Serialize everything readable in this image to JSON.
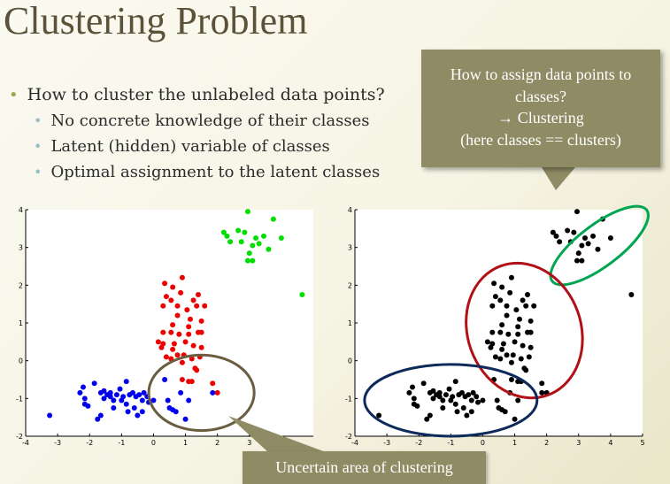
{
  "slide": {
    "title": "Clustering Problem",
    "bullets": {
      "main": "How to cluster the unlabeled data points?",
      "sub": [
        "No concrete knowledge of their classes",
        "Latent (hidden) variable of classes",
        "Optimal assignment to the latent classes"
      ]
    },
    "callout_lines": [
      "How to assign data points to",
      "classes?",
      "→ Clustering",
      "(here classes == clusters)"
    ],
    "bottom_callout": "Uncertain area of clustering"
  },
  "colors": {
    "green": "#00dd00",
    "red": "#ee0000",
    "blue": "#0000ee",
    "black": "#000000",
    "ellipse_green": "#00a651",
    "ellipse_red": "#b01016",
    "ellipse_navy": "#0c2a5a",
    "ellipse_brown": "#6a5d40"
  },
  "chart_data": [
    {
      "type": "scatter",
      "xlim": [
        -4,
        5
      ],
      "ylim": [
        -2,
        4
      ],
      "xticks": [
        "-4",
        "-3",
        "-2",
        "-1",
        "0",
        "1",
        "2",
        "3"
      ],
      "yticks": [
        "-2",
        "-1",
        "0",
        "1",
        "2",
        "3",
        "4"
      ],
      "series": [
        {
          "color": "green",
          "points": [
            [
              2.2,
              3.4
            ],
            [
              2.3,
              3.3
            ],
            [
              2.4,
              3.15
            ],
            [
              2.65,
              3.45
            ],
            [
              2.95,
              3.95
            ],
            [
              3.1,
              3.05
            ],
            [
              2.75,
              3.15
            ],
            [
              2.85,
              3.4
            ],
            [
              3.0,
              2.85
            ],
            [
              3.2,
              3.25
            ],
            [
              3.3,
              3.1
            ],
            [
              3.45,
              3.3
            ],
            [
              3.6,
              2.95
            ],
            [
              3.75,
              3.75
            ],
            [
              4.0,
              3.25
            ],
            [
              2.95,
              2.65
            ],
            [
              3.1,
              2.65
            ],
            [
              4.65,
              1.75
            ]
          ]
        },
        {
          "color": "red",
          "points": [
            [
              0.35,
              2.05
            ],
            [
              0.6,
              1.95
            ],
            [
              0.9,
              2.2
            ],
            [
              0.4,
              1.7
            ],
            [
              0.55,
              1.6
            ],
            [
              0.3,
              1.45
            ],
            [
              0.85,
              1.8
            ],
            [
              1.25,
              1.6
            ],
            [
              1.4,
              1.75
            ],
            [
              0.75,
              1.45
            ],
            [
              1.05,
              1.35
            ],
            [
              1.35,
              1.45
            ],
            [
              1.6,
              1.45
            ],
            [
              0.75,
              1.2
            ],
            [
              1.15,
              1.1
            ],
            [
              1.5,
              1.05
            ],
            [
              0.6,
              0.95
            ],
            [
              1.1,
              0.9
            ],
            [
              0.3,
              0.75
            ],
            [
              0.55,
              0.75
            ],
            [
              0.8,
              0.7
            ],
            [
              1.1,
              0.7
            ],
            [
              1.4,
              0.75
            ],
            [
              1.5,
              0.75
            ],
            [
              1.0,
              0.5
            ],
            [
              0.65,
              0.45
            ],
            [
              1.25,
              0.4
            ],
            [
              0.3,
              0.45
            ],
            [
              0.4,
              0.1
            ],
            [
              0.55,
              0.05
            ],
            [
              0.75,
              0.15
            ],
            [
              0.95,
              0.15
            ],
            [
              0.25,
              0.35
            ],
            [
              0.15,
              0.5
            ],
            [
              1.45,
              0.1
            ],
            [
              1.5,
              0.35
            ],
            [
              1.2,
              0.05
            ],
            [
              1.1,
              -0.55
            ],
            [
              1.2,
              -0.55
            ],
            [
              1.3,
              -0.2
            ],
            [
              0.9,
              -0.5
            ],
            [
              1.85,
              -0.6
            ],
            [
              2.0,
              -0.85
            ],
            [
              1.35,
              -0.25
            ],
            [
              0.9,
              -0.05
            ],
            [
              0.6,
              0.3
            ]
          ]
        },
        {
          "color": "blue",
          "points": [
            [
              -3.25,
              -1.45
            ],
            [
              -2.3,
              -0.85
            ],
            [
              -2.2,
              -0.7
            ],
            [
              -2.15,
              -1.0
            ],
            [
              -2.15,
              -1.15
            ],
            [
              -2.05,
              -1.2
            ],
            [
              -1.85,
              -0.6
            ],
            [
              -1.65,
              -0.85
            ],
            [
              -1.55,
              -0.8
            ],
            [
              -1.45,
              -0.9
            ],
            [
              -1.35,
              -0.85
            ],
            [
              -1.25,
              -1.05
            ],
            [
              -1.15,
              -0.9
            ],
            [
              -1.05,
              -0.75
            ],
            [
              -0.95,
              -0.95
            ],
            [
              -0.85,
              -0.55
            ],
            [
              -0.85,
              -1.15
            ],
            [
              -0.75,
              -0.9
            ],
            [
              -0.65,
              -0.85
            ],
            [
              -0.55,
              -0.95
            ],
            [
              -0.45,
              -0.9
            ],
            [
              -0.3,
              -0.85
            ],
            [
              -0.2,
              -0.95
            ],
            [
              -0.35,
              -1.05
            ],
            [
              -1.65,
              -1.45
            ],
            [
              -1.75,
              -1.55
            ],
            [
              -1.25,
              -1.25
            ],
            [
              -0.8,
              -1.35
            ],
            [
              -0.6,
              -1.25
            ],
            [
              -0.5,
              -1.45
            ],
            [
              -0.35,
              -1.35
            ],
            [
              -0.15,
              -1.1
            ],
            [
              0.0,
              -1.05
            ],
            [
              0.35,
              -0.5
            ],
            [
              0.5,
              -1.25
            ],
            [
              0.6,
              -1.3
            ],
            [
              0.7,
              -1.35
            ],
            [
              0.85,
              -0.85
            ],
            [
              1.0,
              -1.55
            ],
            [
              1.1,
              -1.05
            ],
            [
              1.85,
              -0.85
            ],
            [
              0.45,
              -1.05
            ],
            [
              -1.35,
              -0.95
            ],
            [
              -1.55,
              -1.0
            ],
            [
              -1.0,
              -1.05
            ]
          ]
        }
      ]
    },
    {
      "type": "scatter",
      "xlim": [
        -4,
        5
      ],
      "ylim": [
        -2,
        4
      ],
      "xticks": [
        "-4",
        "-3",
        "-2",
        "-1",
        "0",
        "1",
        "2",
        "3",
        "4",
        "5"
      ],
      "yticks": [
        "-2",
        "-1",
        "0",
        "1",
        "2",
        "3",
        "4"
      ],
      "color": "black",
      "same_points_as_left": true,
      "ellipses": [
        {
          "color": "ellipse_green",
          "cx": 3.65,
          "cy": 3.05,
          "rx": 1.85,
          "ry": 0.55,
          "angle": 37
        },
        {
          "color": "ellipse_red",
          "cx": 1.3,
          "cy": 0.8,
          "rx": 2.15,
          "ry": 1.5,
          "angle": -70
        },
        {
          "color": "ellipse_navy",
          "cx": -1.0,
          "cy": -1.05,
          "rx": 2.7,
          "ry": 0.95,
          "angle": 0
        }
      ]
    }
  ],
  "uncertain_region": {
    "chart": 0,
    "color": "ellipse_brown",
    "cx": 1.5,
    "cy": -0.85,
    "rx": 1.65,
    "ry": 1.0
  }
}
